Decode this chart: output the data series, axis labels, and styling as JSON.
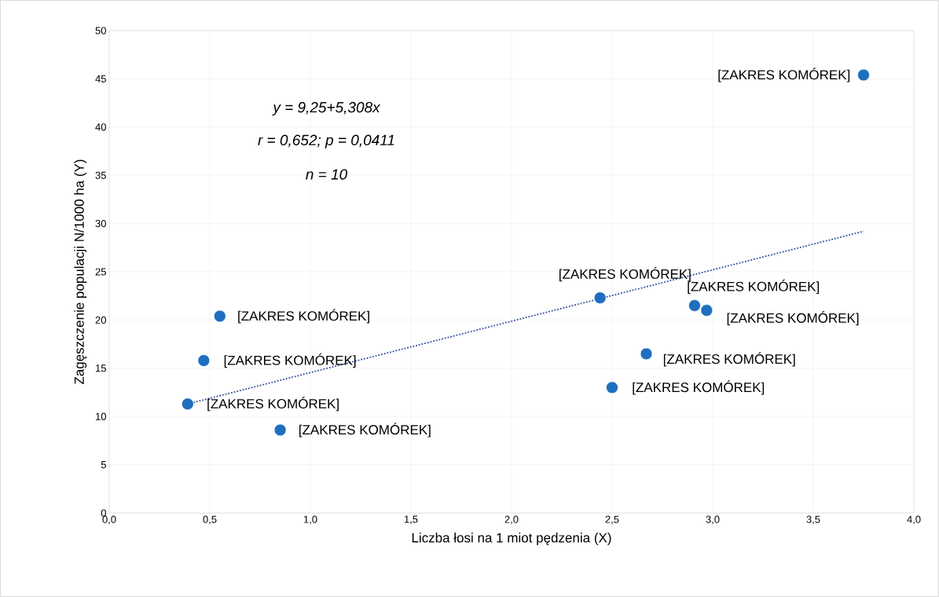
{
  "chart_data": {
    "type": "scatter",
    "xlabel": "Liczba łosi na 1 miot pędzenia (X)",
    "ylabel": "Zagęszczenie populacji N/1000 ha (Y)",
    "xlim": [
      0,
      4
    ],
    "ylim": [
      0,
      50
    ],
    "xticks": [
      {
        "value": 0,
        "label": "0,0"
      },
      {
        "value": 0.5,
        "label": "0,5"
      },
      {
        "value": 1,
        "label": "1,0"
      },
      {
        "value": 1.5,
        "label": "1,5"
      },
      {
        "value": 2,
        "label": "2,0"
      },
      {
        "value": 2.5,
        "label": "2,5"
      },
      {
        "value": 3,
        "label": "3,0"
      },
      {
        "value": 3.5,
        "label": "3,5"
      },
      {
        "value": 4,
        "label": "4,0"
      }
    ],
    "yticks": [
      0,
      5,
      10,
      15,
      20,
      25,
      30,
      35,
      40,
      45,
      50
    ],
    "grid": true,
    "series": [
      {
        "marker": "circle",
        "color": "#1f6fc0",
        "x": [
          0.39,
          0.47,
          0.55,
          0.85,
          2.44,
          2.5,
          2.67,
          2.91,
          2.97,
          3.75
        ],
        "values": [
          11.3,
          15.8,
          20.4,
          8.6,
          22.3,
          13.0,
          16.5,
          21.5,
          21.0,
          45.4
        ]
      },
      {
        "type": "line",
        "color": "#2e4a9e",
        "line_style": "dotted",
        "x": [
          0.39,
          3.75
        ],
        "values": [
          11.3,
          29.2
        ]
      }
    ],
    "annotations": [
      "y = 9,25+5,308x",
      "r = 0,652; p = 0,0411",
      "n = 10",
      {
        "text": "[ZAKRES KOMÓREK]",
        "x": 0.39,
        "y": 11.3
      },
      {
        "text": "[ZAKRES KOMÓREK]",
        "x": 0.47,
        "y": 15.8
      },
      {
        "text": "[ZAKRES KOMÓREK]",
        "x": 0.55,
        "y": 20.4
      },
      {
        "text": "[ZAKRES KOMÓREK]",
        "x": 0.85,
        "y": 8.6
      },
      {
        "text": "[ZAKRES KOMÓREK]",
        "x": 2.44,
        "y": 22.3
      },
      {
        "text": "[ZAKRES KOMÓREK]",
        "x": 2.5,
        "y": 13.0
      },
      {
        "text": "[ZAKRES KOMÓREK]",
        "x": 2.67,
        "y": 16.5
      },
      {
        "text": "[ZAKRES KOMÓREK]",
        "x": 2.91,
        "y": 21.5
      },
      {
        "text": "[ZAKRES KOMÓREK]",
        "x": 2.97,
        "y": 21.0
      },
      {
        "text": "[ZAKRES KOMÓREK]",
        "x": 3.75,
        "y": 45.4
      }
    ]
  }
}
